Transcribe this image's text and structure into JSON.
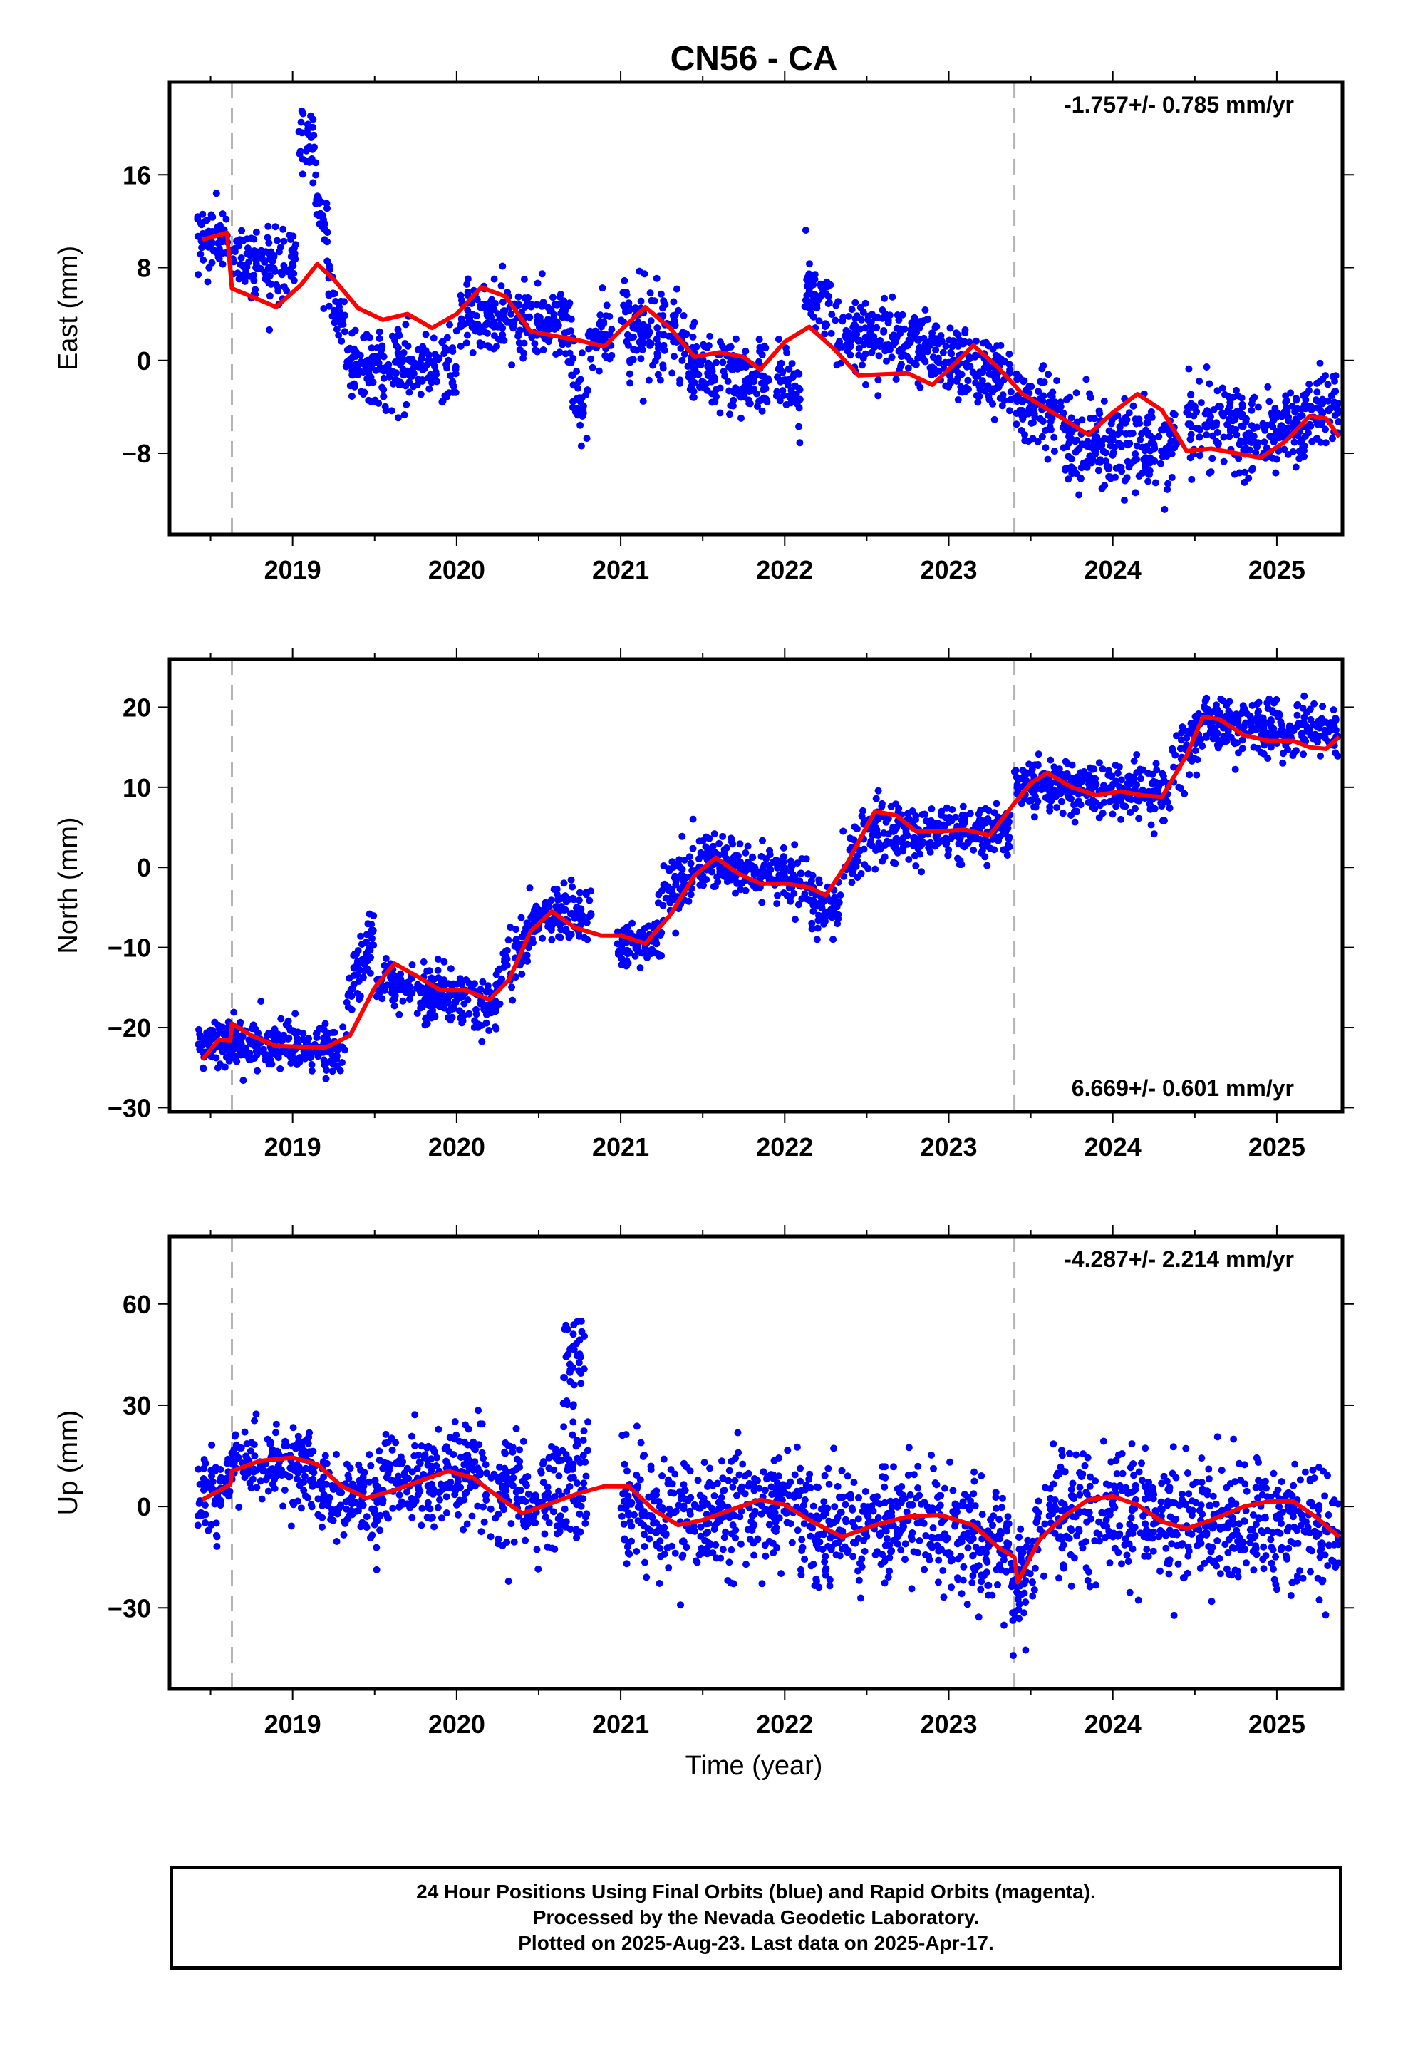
{
  "title": "CN56 - CA",
  "xlabel": "Time (year)",
  "colors": {
    "data": "#0000ff",
    "model": "#ff0000",
    "event_line": "#b4b4b4",
    "frame": "#000000"
  },
  "footer": {
    "line1": "24 Hour Positions Using Final Orbits (blue) and Rapid Orbits (magenta).",
    "line2": "Processed by the Nevada Geodetic Laboratory.",
    "line3": "Plotted on 2025-Aug-23. Last data on 2025-Apr-17."
  },
  "chart_data": [
    {
      "type": "scatter",
      "component": "East",
      "ylabel": "East (mm)",
      "xlim": [
        2018.25,
        2025.4
      ],
      "ylim": [
        -15,
        24
      ],
      "yticks": [
        -8,
        0,
        8,
        16
      ],
      "xticks": [
        2019,
        2020,
        2021,
        2022,
        2023,
        2024,
        2025
      ],
      "rate": "-1.757+/- 0.785 mm/yr",
      "rate_position": "top-right",
      "event_lines": [
        2018.63,
        2023.4
      ],
      "data_color": "blue",
      "trend_points": [
        [
          2018.45,
          10.4
        ],
        [
          2018.6,
          11.0
        ],
        [
          2018.63,
          6.2
        ],
        [
          2018.75,
          5.5
        ],
        [
          2018.9,
          4.6
        ],
        [
          2019.05,
          6.5
        ],
        [
          2019.15,
          8.3
        ],
        [
          2019.25,
          7.0
        ],
        [
          2019.4,
          4.5
        ],
        [
          2019.55,
          3.5
        ],
        [
          2019.7,
          4.0
        ],
        [
          2019.85,
          2.8
        ],
        [
          2020.0,
          4.0
        ],
        [
          2020.15,
          6.3
        ],
        [
          2020.3,
          5.5
        ],
        [
          2020.45,
          2.5
        ],
        [
          2020.6,
          2.1
        ],
        [
          2020.75,
          1.7
        ],
        [
          2020.9,
          1.2
        ],
        [
          2021.0,
          2.6
        ],
        [
          2021.15,
          4.6
        ],
        [
          2021.3,
          2.8
        ],
        [
          2021.45,
          0.3
        ],
        [
          2021.6,
          0.7
        ],
        [
          2021.75,
          0.3
        ],
        [
          2021.85,
          -0.8
        ],
        [
          2022.0,
          1.6
        ],
        [
          2022.15,
          2.9
        ],
        [
          2022.3,
          1.0
        ],
        [
          2022.45,
          -1.3
        ],
        [
          2022.6,
          -1.2
        ],
        [
          2022.75,
          -1.1
        ],
        [
          2022.9,
          -2.1
        ],
        [
          2023.05,
          -0.1
        ],
        [
          2023.15,
          1.3
        ],
        [
          2023.3,
          -0.6
        ],
        [
          2023.45,
          -2.9
        ],
        [
          2023.6,
          -4.2
        ],
        [
          2023.75,
          -5.5
        ],
        [
          2023.85,
          -6.4
        ],
        [
          2024.0,
          -4.5
        ],
        [
          2024.15,
          -2.9
        ],
        [
          2024.3,
          -4.3
        ],
        [
          2024.45,
          -7.8
        ],
        [
          2024.6,
          -7.6
        ],
        [
          2024.75,
          -8.0
        ],
        [
          2024.9,
          -8.4
        ],
        [
          2025.05,
          -7.0
        ],
        [
          2025.2,
          -4.8
        ],
        [
          2025.3,
          -5.0
        ],
        [
          2025.38,
          -6.6
        ]
      ],
      "data_segments": [
        [
          2018.42,
          2018.62,
          11.0,
          10.2,
          1.3
        ],
        [
          2018.63,
          2018.95,
          9.0,
          8.0,
          1.4
        ],
        [
          2018.95,
          2019.02,
          7.5,
          9.5,
          1.2
        ],
        [
          2019.03,
          2019.13,
          20.5,
          18.0,
          1.8
        ],
        [
          2019.13,
          2019.22,
          16.0,
          10.0,
          1.8
        ],
        [
          2019.22,
          2019.32,
          7.0,
          3.0,
          1.5
        ],
        [
          2019.32,
          2020.0,
          -0.5,
          -0.8,
          1.6
        ],
        [
          2020.02,
          2020.7,
          4.0,
          3.2,
          1.6
        ],
        [
          2020.7,
          2020.8,
          -1.5,
          -4.0,
          1.8
        ],
        [
          2020.8,
          2020.95,
          1.5,
          2.0,
          1.4
        ],
        [
          2021.0,
          2021.4,
          3.0,
          2.0,
          1.6
        ],
        [
          2021.4,
          2021.92,
          -0.5,
          -2.0,
          1.6
        ],
        [
          2021.95,
          2022.1,
          -1.0,
          -3.0,
          1.6
        ],
        [
          2022.12,
          2022.3,
          6.2,
          3.8,
          1.5
        ],
        [
          2022.3,
          2022.95,
          2.5,
          1.2,
          1.6
        ],
        [
          2022.95,
          2023.38,
          0.2,
          -1.5,
          1.5
        ],
        [
          2023.4,
          2023.7,
          -3.0,
          -5.0,
          1.5
        ],
        [
          2023.7,
          2024.4,
          -7.5,
          -7.0,
          1.8
        ],
        [
          2024.45,
          2024.85,
          -5.0,
          -6.0,
          1.8
        ],
        [
          2024.85,
          2025.38,
          -6.5,
          -4.0,
          1.8
        ]
      ]
    },
    {
      "type": "scatter",
      "component": "North",
      "ylabel": "North (mm)",
      "xlim": [
        2018.25,
        2025.4
      ],
      "ylim": [
        -30.5,
        26
      ],
      "yticks": [
        -30,
        -20,
        -10,
        0,
        10,
        20
      ],
      "xticks": [
        2019,
        2020,
        2021,
        2022,
        2023,
        2024,
        2025
      ],
      "rate": "6.669+/- 0.601 mm/yr",
      "rate_position": "bottom-right",
      "event_lines": [
        2018.63,
        2023.4
      ],
      "data_color": "blue",
      "trend_points": [
        [
          2018.45,
          -24.0
        ],
        [
          2018.55,
          -21.5
        ],
        [
          2018.62,
          -21.6
        ],
        [
          2018.63,
          -19.5
        ],
        [
          2018.75,
          -21.0
        ],
        [
          2018.9,
          -22.3
        ],
        [
          2019.05,
          -22.4
        ],
        [
          2019.2,
          -22.5
        ],
        [
          2019.35,
          -21.0
        ],
        [
          2019.5,
          -15.0
        ],
        [
          2019.62,
          -12.0
        ],
        [
          2019.75,
          -13.5
        ],
        [
          2019.9,
          -15.3
        ],
        [
          2020.05,
          -15.3
        ],
        [
          2020.2,
          -16.5
        ],
        [
          2020.32,
          -14.0
        ],
        [
          2020.45,
          -8.0
        ],
        [
          2020.58,
          -5.5
        ],
        [
          2020.72,
          -7.5
        ],
        [
          2020.88,
          -8.5
        ],
        [
          2021.0,
          -8.5
        ],
        [
          2021.15,
          -9.5
        ],
        [
          2021.3,
          -6.0
        ],
        [
          2021.45,
          -1.0
        ],
        [
          2021.58,
          1.2
        ],
        [
          2021.72,
          -0.8
        ],
        [
          2021.85,
          -2.0
        ],
        [
          2022.0,
          -2.0
        ],
        [
          2022.15,
          -2.5
        ],
        [
          2022.25,
          -3.5
        ],
        [
          2022.38,
          0.5
        ],
        [
          2022.55,
          7.0
        ],
        [
          2022.68,
          6.5
        ],
        [
          2022.8,
          4.5
        ],
        [
          2022.95,
          4.5
        ],
        [
          2023.1,
          4.7
        ],
        [
          2023.25,
          4.0
        ],
        [
          2023.38,
          7.5
        ],
        [
          2023.5,
          10.5
        ],
        [
          2023.6,
          11.8
        ],
        [
          2023.75,
          10.0
        ],
        [
          2023.9,
          9.0
        ],
        [
          2024.05,
          9.5
        ],
        [
          2024.18,
          9.0
        ],
        [
          2024.3,
          8.8
        ],
        [
          2024.45,
          14.0
        ],
        [
          2024.55,
          18.8
        ],
        [
          2024.65,
          18.5
        ],
        [
          2024.8,
          16.5
        ],
        [
          2024.95,
          15.8
        ],
        [
          2025.1,
          15.8
        ],
        [
          2025.2,
          15.0
        ],
        [
          2025.3,
          14.8
        ],
        [
          2025.38,
          16.3
        ]
      ],
      "data_segments": [
        [
          2018.42,
          2019.32,
          -22.0,
          -22.8,
          1.5
        ],
        [
          2019.32,
          2019.5,
          -16.0,
          -8.0,
          2.0
        ],
        [
          2019.5,
          2020.25,
          -14.5,
          -17.5,
          1.6
        ],
        [
          2020.25,
          2020.45,
          -14.0,
          -8.0,
          2.0
        ],
        [
          2020.45,
          2020.82,
          -7.0,
          -5.0,
          1.8
        ],
        [
          2020.98,
          2021.25,
          -10.0,
          -8.5,
          1.6
        ],
        [
          2021.25,
          2021.55,
          -4.0,
          1.5,
          1.8
        ],
        [
          2021.55,
          2022.15,
          0.5,
          -2.0,
          1.6
        ],
        [
          2022.15,
          2022.35,
          -4.5,
          -5.0,
          1.8
        ],
        [
          2022.35,
          2022.6,
          0.0,
          6.0,
          2.0
        ],
        [
          2022.6,
          2023.38,
          4.0,
          4.5,
          1.7
        ],
        [
          2023.4,
          2024.35,
          10.5,
          9.0,
          1.6
        ],
        [
          2024.35,
          2024.6,
          11.0,
          19.0,
          2.0
        ],
        [
          2024.6,
          2025.38,
          18.0,
          16.5,
          1.6
        ]
      ]
    },
    {
      "type": "scatter",
      "component": "Up",
      "ylabel": "Up (mm)",
      "xlim": [
        2018.25,
        2025.4
      ],
      "ylim": [
        -54,
        80
      ],
      "yticks": [
        -30,
        0,
        30,
        60
      ],
      "xticks": [
        2019,
        2020,
        2021,
        2022,
        2023,
        2024,
        2025
      ],
      "rate": "-4.287+/- 2.214 mm/yr",
      "rate_position": "top-right",
      "event_lines": [
        2018.63,
        2023.4
      ],
      "data_color": "blue",
      "trend_points": [
        [
          2018.45,
          2.0
        ],
        [
          2018.62,
          6.5
        ],
        [
          2018.63,
          10.5
        ],
        [
          2018.8,
          13.5
        ],
        [
          2019.0,
          14.5
        ],
        [
          2019.15,
          12.5
        ],
        [
          2019.3,
          6.0
        ],
        [
          2019.45,
          2.5
        ],
        [
          2019.6,
          4.5
        ],
        [
          2019.8,
          8.0
        ],
        [
          2019.95,
          10.5
        ],
        [
          2020.1,
          8.5
        ],
        [
          2020.25,
          3.0
        ],
        [
          2020.4,
          -2.0
        ],
        [
          2020.55,
          0.5
        ],
        [
          2020.75,
          4.0
        ],
        [
          2020.9,
          6.0
        ],
        [
          2021.05,
          6.0
        ],
        [
          2021.2,
          -1.0
        ],
        [
          2021.35,
          -5.5
        ],
        [
          2021.5,
          -4.0
        ],
        [
          2021.7,
          -0.5
        ],
        [
          2021.85,
          2.0
        ],
        [
          2022.0,
          0.5
        ],
        [
          2022.15,
          -4.0
        ],
        [
          2022.35,
          -9.0
        ],
        [
          2022.55,
          -5.5
        ],
        [
          2022.75,
          -3.0
        ],
        [
          2022.95,
          -2.5
        ],
        [
          2023.15,
          -5.5
        ],
        [
          2023.3,
          -12.0
        ],
        [
          2023.4,
          -15.0
        ],
        [
          2023.42,
          -22.5
        ],
        [
          2023.55,
          -10.0
        ],
        [
          2023.7,
          -3.0
        ],
        [
          2023.85,
          2.0
        ],
        [
          2024.0,
          3.0
        ],
        [
          2024.15,
          0.5
        ],
        [
          2024.3,
          -4.5
        ],
        [
          2024.45,
          -6.5
        ],
        [
          2024.6,
          -4.0
        ],
        [
          2024.8,
          0.0
        ],
        [
          2024.95,
          1.5
        ],
        [
          2025.1,
          1.5
        ],
        [
          2025.25,
          -3.5
        ],
        [
          2025.38,
          -9.0
        ]
      ],
      "data_segments": [
        [
          2018.42,
          2018.62,
          3.0,
          6.0,
          6.0
        ],
        [
          2018.63,
          2019.15,
          13.0,
          12.0,
          5.5
        ],
        [
          2019.15,
          2019.55,
          5.0,
          2.0,
          6.5
        ],
        [
          2019.55,
          2020.2,
          6.0,
          9.0,
          7.5
        ],
        [
          2020.2,
          2020.8,
          2.0,
          6.0,
          8.5
        ],
        [
          2020.65,
          2020.78,
          35.0,
          50.0,
          8.0
        ],
        [
          2021.0,
          2021.45,
          0.0,
          -6.0,
          8.5
        ],
        [
          2021.45,
          2022.1,
          -2.0,
          0.0,
          8.5
        ],
        [
          2022.1,
          2022.8,
          -7.0,
          -3.0,
          8.5
        ],
        [
          2022.8,
          2023.38,
          -4.0,
          -12.0,
          8.0
        ],
        [
          2023.38,
          2023.6,
          -25.0,
          -10.0,
          8.0
        ],
        [
          2023.6,
          2024.3,
          0.0,
          -2.0,
          8.5
        ],
        [
          2024.3,
          2025.38,
          -4.0,
          -6.0,
          9.0
        ]
      ]
    }
  ]
}
